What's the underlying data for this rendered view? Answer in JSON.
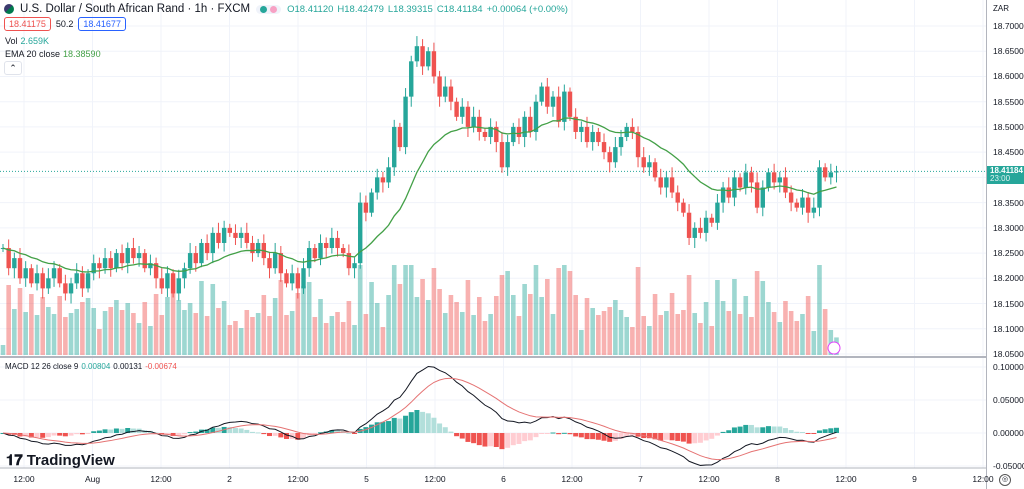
{
  "header": {
    "symbol": "U.S. Dollar / South African Rand · 1h · FXCM",
    "open": "O18.41120",
    "high": "H18.42479",
    "low": "L18.39315",
    "close": "C18.41184",
    "change": "+0.00064 (+0.00%)",
    "sell": "18.41175",
    "spread": "50.2",
    "buy": "18.41677"
  },
  "indicators": {
    "vol_label": "Vol",
    "vol_value": "2.659K",
    "ema_label": "EMA 20 close",
    "ema_value": "18.38590",
    "macd_label": "MACD 12 26 close 9",
    "macd_v1": "0.00804",
    "macd_v2": "0.00131",
    "macd_v3": "-0.00674"
  },
  "axis": {
    "currency": "ZAR",
    "ticks": [
      "18.70000",
      "18.65000",
      "18.60000",
      "18.55000",
      "18.50000",
      "18.45000",
      "18.35000",
      "18.30000",
      "18.25000",
      "18.20000",
      "18.15000",
      "18.10000",
      "18.05000"
    ],
    "current_price": "18.41184",
    "countdown": "23:00",
    "macd_ticks": [
      "0.10000",
      "0.05000",
      "0.00000",
      "-0.05000"
    ]
  },
  "time_labels": [
    "12:00",
    "Aug",
    "12:00",
    "2",
    "12:00",
    "5",
    "12:00",
    "6",
    "12:00",
    "7",
    "12:00",
    "8",
    "12:00",
    "9",
    "12:00"
  ],
  "brand": "TradingView",
  "colors": {
    "up": "#26a69a",
    "down": "#ef5350",
    "ema": "#43a047"
  },
  "chart_data": {
    "type": "candlestick",
    "interval": "1h",
    "ylim": [
      18.05,
      18.7
    ],
    "closes": [
      18.26,
      18.22,
      18.24,
      18.2,
      18.22,
      18.19,
      18.21,
      18.18,
      18.2,
      18.22,
      18.19,
      18.17,
      18.19,
      18.21,
      18.18,
      18.21,
      18.23,
      18.22,
      18.24,
      18.22,
      18.25,
      18.23,
      18.26,
      18.24,
      18.25,
      18.22,
      18.23,
      18.2,
      18.18,
      18.21,
      18.17,
      18.2,
      18.22,
      18.25,
      18.23,
      18.27,
      18.25,
      18.29,
      18.27,
      18.3,
      18.29,
      18.28,
      18.29,
      18.27,
      18.25,
      18.27,
      18.24,
      18.22,
      18.25,
      18.21,
      18.19,
      18.21,
      18.18,
      18.22,
      18.26,
      18.24,
      18.27,
      18.26,
      18.28,
      18.26,
      18.25,
      18.22,
      18.23,
      18.35,
      18.33,
      18.37,
      18.4,
      18.39,
      18.42,
      18.5,
      18.46,
      18.56,
      18.63,
      18.66,
      18.62,
      18.65,
      18.6,
      18.56,
      18.58,
      18.55,
      18.52,
      18.54,
      18.5,
      18.52,
      18.49,
      18.48,
      18.5,
      18.47,
      18.42,
      18.47,
      18.5,
      18.48,
      18.52,
      18.49,
      18.55,
      18.58,
      18.54,
      18.56,
      18.51,
      18.57,
      18.52,
      18.49,
      18.5,
      18.47,
      18.49,
      18.47,
      18.45,
      18.43,
      18.46,
      18.48,
      18.5,
      18.49,
      18.44,
      18.42,
      18.43,
      18.4,
      18.38,
      18.4,
      18.37,
      18.35,
      18.33,
      18.28,
      18.3,
      18.29,
      18.32,
      18.31,
      18.35,
      18.38,
      18.36,
      18.4,
      18.38,
      18.41,
      18.39,
      18.34,
      18.38,
      18.41,
      18.39,
      18.4,
      18.37,
      18.35,
      18.34,
      18.36,
      18.33,
      18.34,
      18.42,
      18.4,
      18.41,
      18.41184
    ]
  }
}
